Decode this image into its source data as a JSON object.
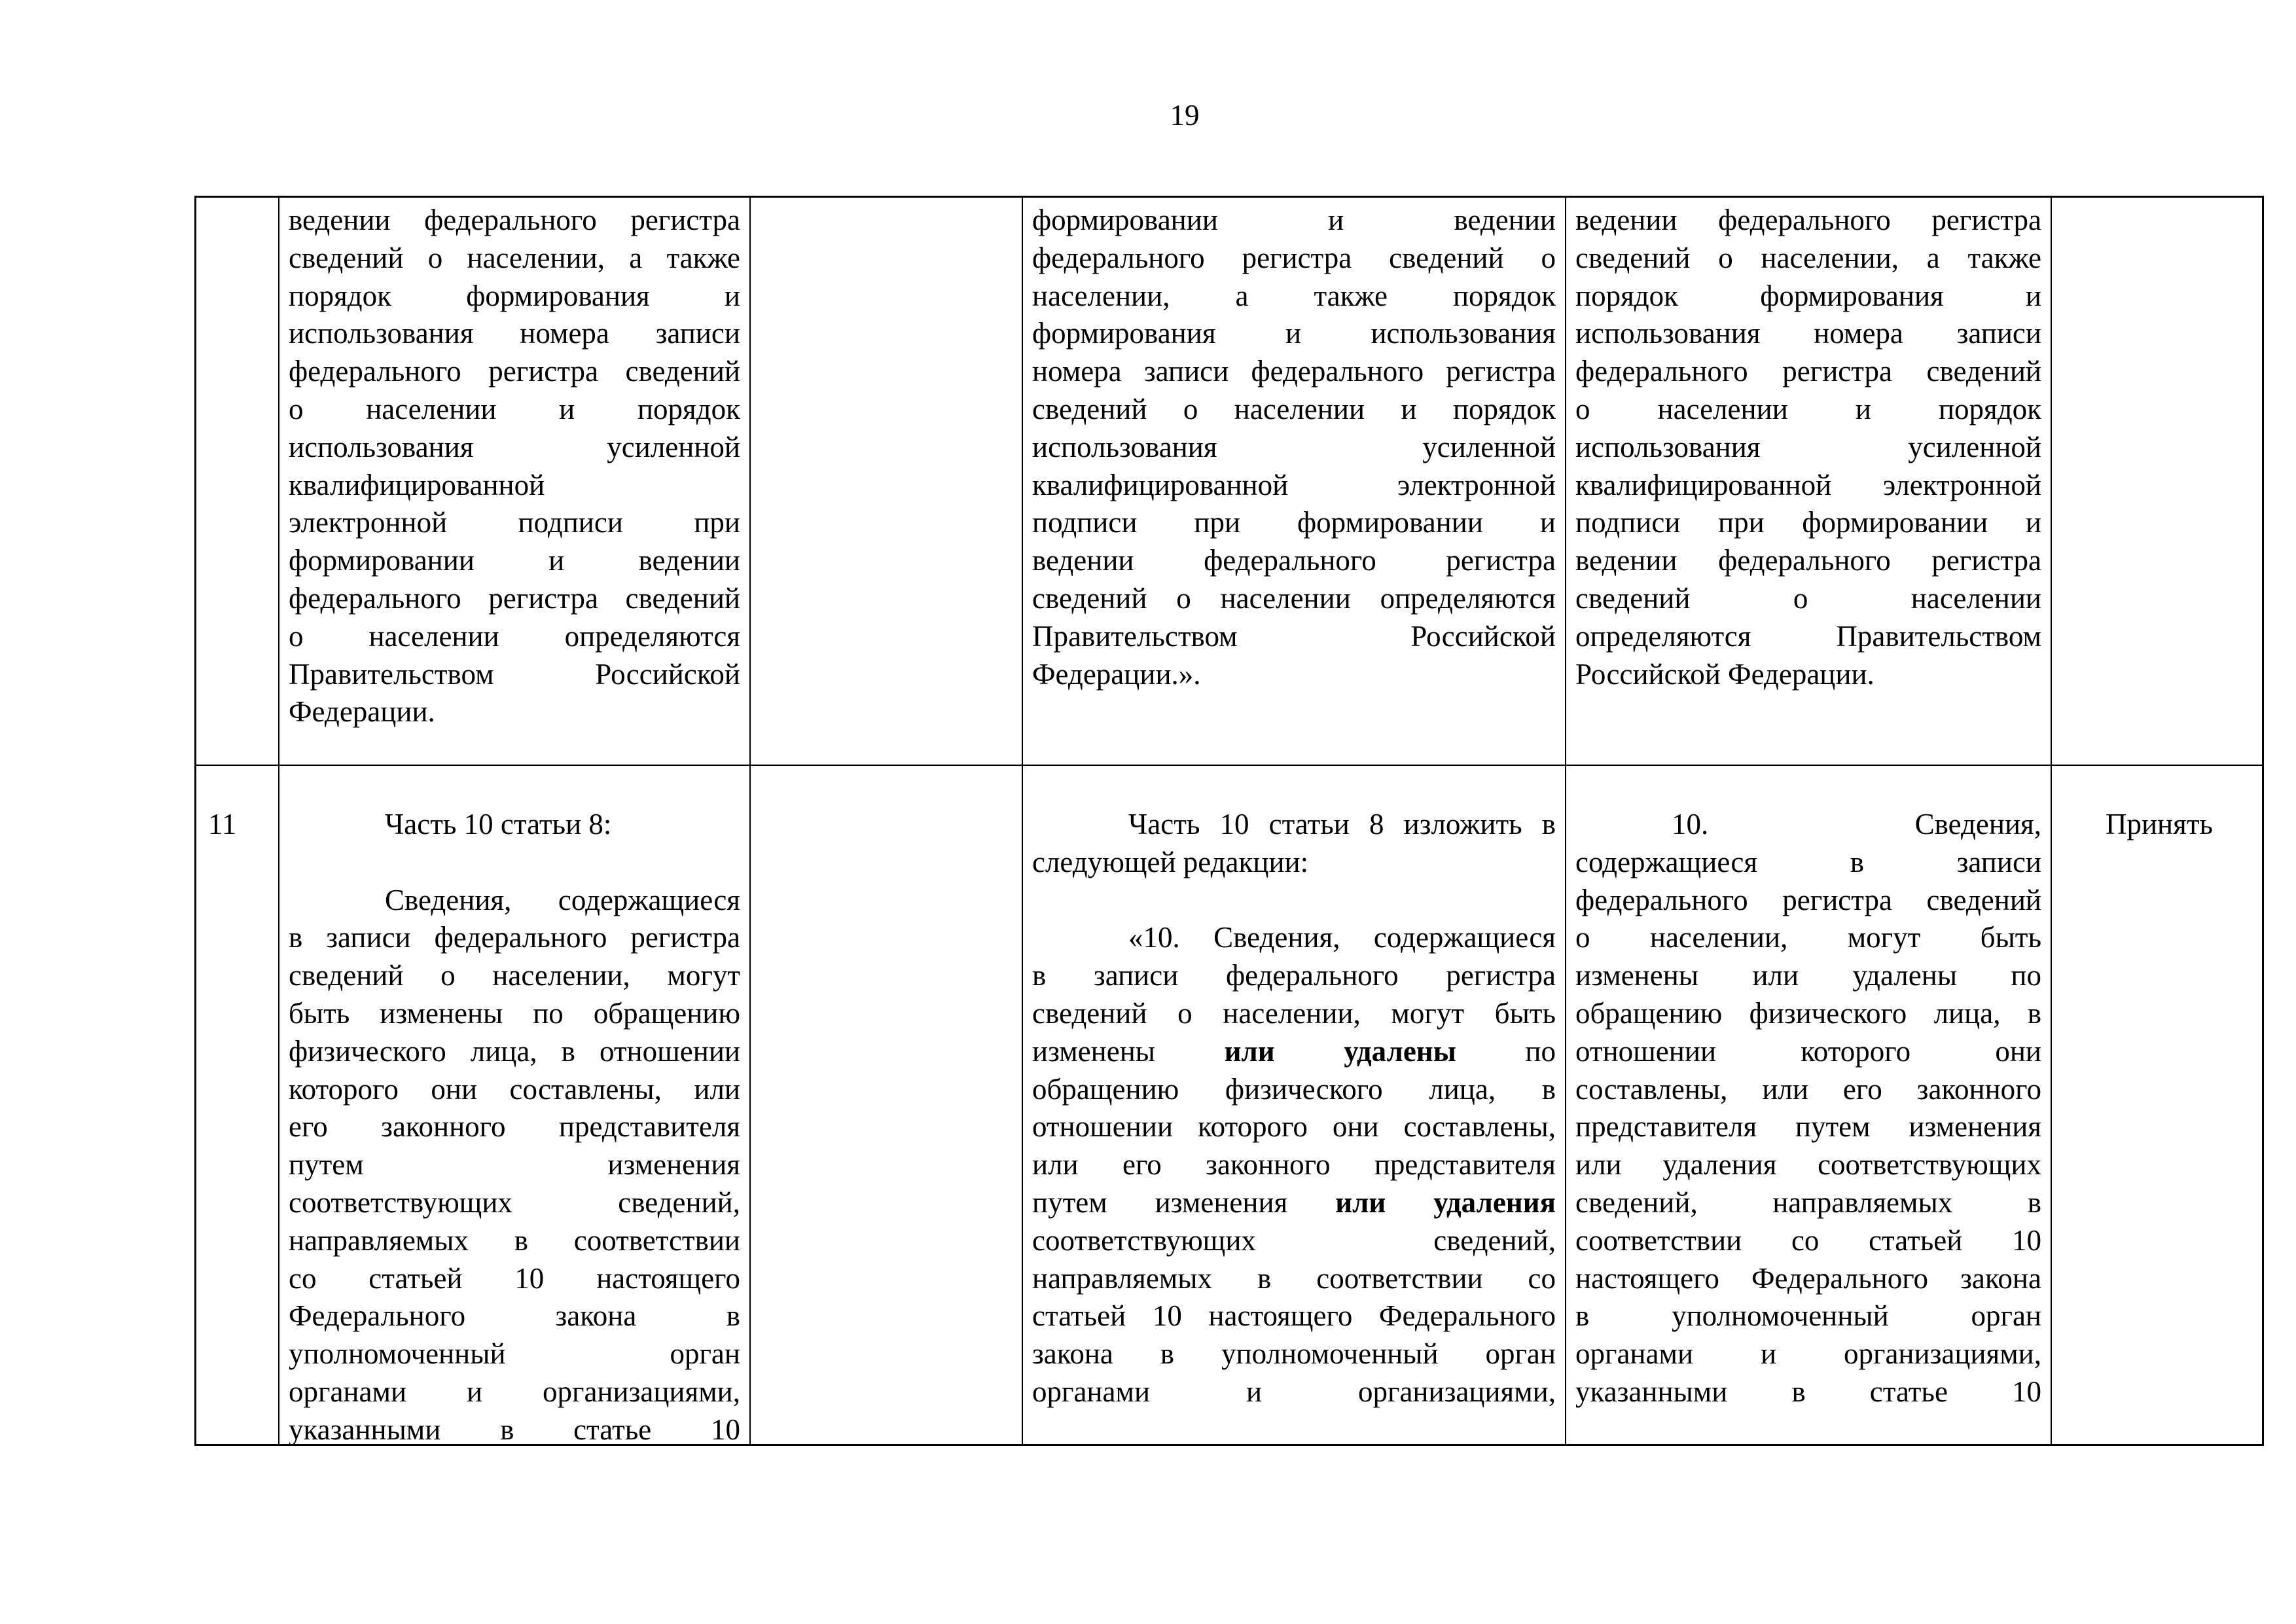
{
  "page_number": "19",
  "rows": [
    {
      "number": "",
      "col2": [
        {
          "indent": false,
          "lines": [
            "ведении федерального регистра",
            "сведений о населении, а также",
            "порядок формирования и",
            "использования номера записи",
            "федерального регистра сведений",
            "о населении и порядок",
            "использования усиленной",
            "квалифицированной"
          ]
        },
        {
          "indent": false,
          "lines": [
            "электронной подписи при",
            "формировании и ведении",
            "федерального регистра сведений",
            "о населении определяются",
            "Правительством Российской",
            "Федерации."
          ]
        }
      ],
      "col3": [],
      "col4": [
        {
          "indent": false,
          "lines": [
            "формировании и ведении",
            "федерального регистра сведений о",
            "населении, а также порядок",
            "формирования и использования",
            "номера записи федерального регистра",
            "сведений о населении и порядок",
            "использования усиленной",
            "квалифицированной электронной",
            "подписи при формировании и",
            "ведении федерального регистра",
            "сведений о населении определяются",
            "Правительством Российской",
            "Федерации.»."
          ]
        }
      ],
      "col5": [
        {
          "indent": false,
          "lines": [
            "ведении федерального регистра",
            "сведений о населении, а также",
            "порядок формирования и",
            "использования номера записи",
            "федерального регистра сведений",
            "о населении и порядок",
            "использования усиленной",
            "квалифицированной электронной",
            "подписи при формировании и",
            "ведении федерального регистра",
            "сведений о населении",
            "определяются Правительством",
            "Российской Федерации."
          ]
        }
      ],
      "decision": ""
    },
    {
      "number": "11",
      "col2": [
        {
          "indent": true,
          "lines": [
            "Часть 10 статьи 8:"
          ]
        },
        {
          "blank": true
        },
        {
          "indent": true,
          "lines": [
            "Сведения, содержащиеся",
            "в записи федерального регистра",
            "сведений о населении, могут",
            "быть изменены по обращению",
            "физического лица, в отношении",
            "которого они составлены, или",
            "его законного представителя",
            "путем изменения",
            "соответствующих сведений,",
            "направляемых в соответствии",
            "со статьей 10 настоящего",
            "Федерального закона в",
            "уполномоченный орган",
            "органами и организациями,",
            "указанными в статье 10"
          ],
          "cut": true
        }
      ],
      "col3": [],
      "col4": [
        {
          "indent": true,
          "lines": [
            "Часть 10 статьи 8 изложить в",
            "следующей редакции:"
          ]
        },
        {
          "blank": true
        },
        {
          "indent": true,
          "lines": [
            "«10. Сведения, содержащиеся",
            "в записи федерального регистра",
            "сведений о населении, могут быть",
            [
              {
                "t": "изменены "
              },
              {
                "t": "или",
                "b": true
              },
              {
                "t": " "
              },
              {
                "t": "удалены",
                "b": true
              },
              {
                "t": " по"
              }
            ],
            "обращению физического лица, в",
            "отношении которого они составлены,",
            "или его законного представителя",
            [
              {
                "t": "путем изменения "
              },
              {
                "t": "или",
                "b": true
              },
              {
                "t": " "
              },
              {
                "t": "удаления",
                "b": true
              }
            ],
            "соответствующих сведений,",
            "направляемых в соответствии со",
            "статьей 10 настоящего Федерального",
            "закона в уполномоченный орган",
            "органами и организациями,"
          ],
          "cut": true
        }
      ],
      "col5": [
        {
          "indent": true,
          "lines": [
            "10. Сведения,",
            "содержащиеся в записи",
            "федерального регистра сведений",
            "о населении, могут быть",
            "изменены или удалены по",
            "обращению физического лица, в",
            "отношении которого они",
            "составлены, или его законного",
            "представителя путем изменения",
            "или удаления соответствующих",
            "сведений, направляемых в",
            "соответствии со статьей 10",
            "настоящего Федерального закона",
            "в уполномоченный орган",
            "органами и организациями,",
            "указанными в статье 10"
          ],
          "cut": true,
          "indent_first_only": true
        }
      ],
      "decision": "Принять"
    }
  ]
}
